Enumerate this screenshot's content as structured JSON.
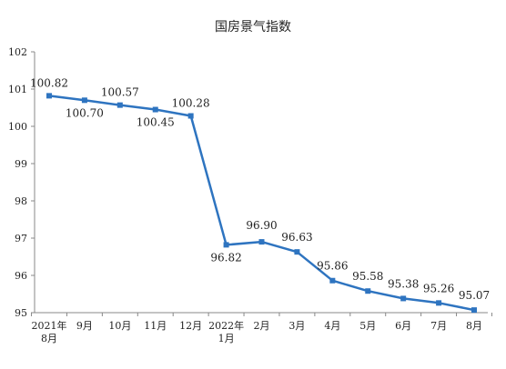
{
  "chart_data": {
    "type": "line",
    "title": "国房景气指数",
    "xlabel": "",
    "ylabel": "",
    "categories": [
      [
        "2021年",
        "8月"
      ],
      [
        "9月"
      ],
      [
        "10月"
      ],
      [
        "11月"
      ],
      [
        "12月"
      ],
      [
        "2022年",
        "1月"
      ],
      [
        "2月"
      ],
      [
        "3月"
      ],
      [
        "4月"
      ],
      [
        "5月"
      ],
      [
        "6月"
      ],
      [
        "7月"
      ],
      [
        "8月"
      ]
    ],
    "series": [
      {
        "values": [
          100.82,
          100.7,
          100.57,
          100.45,
          100.28,
          96.82,
          96.9,
          96.63,
          95.86,
          95.58,
          95.38,
          95.26,
          95.07
        ]
      }
    ],
    "data_labels": [
      "100.82",
      "100.70",
      "100.57",
      "100.45",
      "100.28",
      "96.82",
      "96.90",
      "96.63",
      "95.86",
      "95.58",
      "95.38",
      "95.26",
      "95.07"
    ],
    "ylim": [
      95,
      102
    ],
    "yticks": [
      95,
      96,
      97,
      98,
      99,
      100,
      101,
      102
    ],
    "grid": false,
    "line_color": "#2e74c0"
  }
}
